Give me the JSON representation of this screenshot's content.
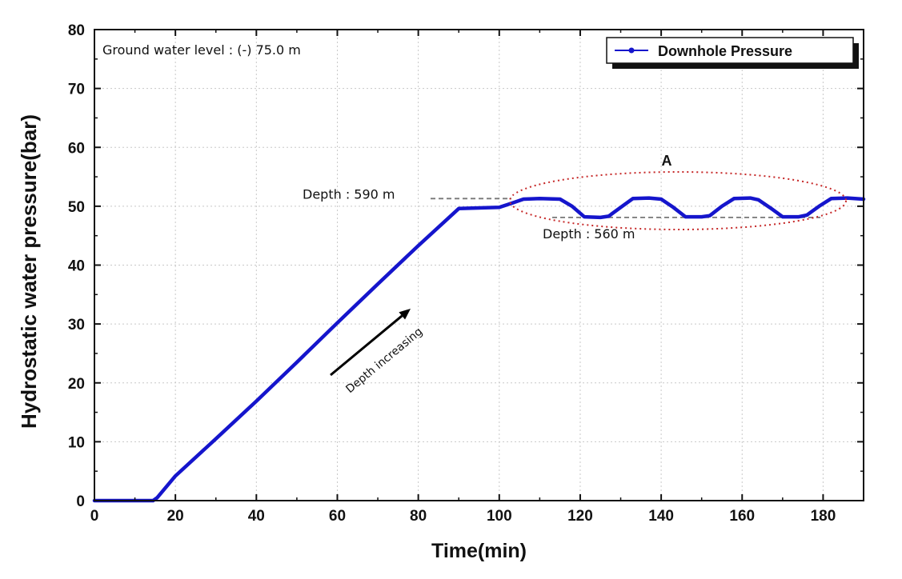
{
  "chart_data": {
    "type": "line",
    "xlabel": "Time(min)",
    "ylabel": "Hydrostatic water pressure(bar)",
    "xlim": [
      0,
      190
    ],
    "ylim": [
      0,
      80
    ],
    "xticks": [
      "0",
      "20",
      "40",
      "60",
      "80",
      "100",
      "120",
      "140",
      "160",
      "180"
    ],
    "yticks": [
      "0",
      "10",
      "20",
      "30",
      "40",
      "50",
      "60",
      "70",
      "80"
    ],
    "grid": true,
    "legend_position": "top-right",
    "series": [
      {
        "name": "Downhole Pressure",
        "color": "#1515cc",
        "x": [
          0,
          10,
          14.5,
          15.5,
          20,
          30,
          40,
          50,
          60,
          70,
          80,
          90,
          100,
          103,
          106,
          110,
          115,
          118,
          121,
          125,
          127,
          130,
          133,
          137,
          140,
          143,
          146,
          150,
          152,
          155,
          158,
          162,
          164,
          167,
          170,
          174,
          176,
          179,
          182,
          186,
          190
        ],
        "y": [
          0,
          0,
          0,
          0.5,
          4.2,
          10.5,
          16.9,
          23.5,
          30.2,
          36.8,
          43.3,
          49.6,
          49.8,
          50.5,
          51.2,
          51.3,
          51.2,
          50.0,
          48.2,
          48.1,
          48.3,
          49.8,
          51.3,
          51.4,
          51.2,
          49.8,
          48.2,
          48.2,
          48.4,
          50.0,
          51.3,
          51.4,
          51.1,
          49.7,
          48.2,
          48.2,
          48.5,
          50.0,
          51.3,
          51.4,
          51.2
        ]
      }
    ],
    "annotations": {
      "ground_water": "Ground  water  level : (-) 75.0 m",
      "depth_upper": "Depth  : 590 m",
      "depth_upper_value": 51.3,
      "depth_lower": "Depth  : 560 m",
      "depth_lower_value": 48.1,
      "region_label": "A",
      "arrow_label": "Depth  increasing"
    }
  }
}
